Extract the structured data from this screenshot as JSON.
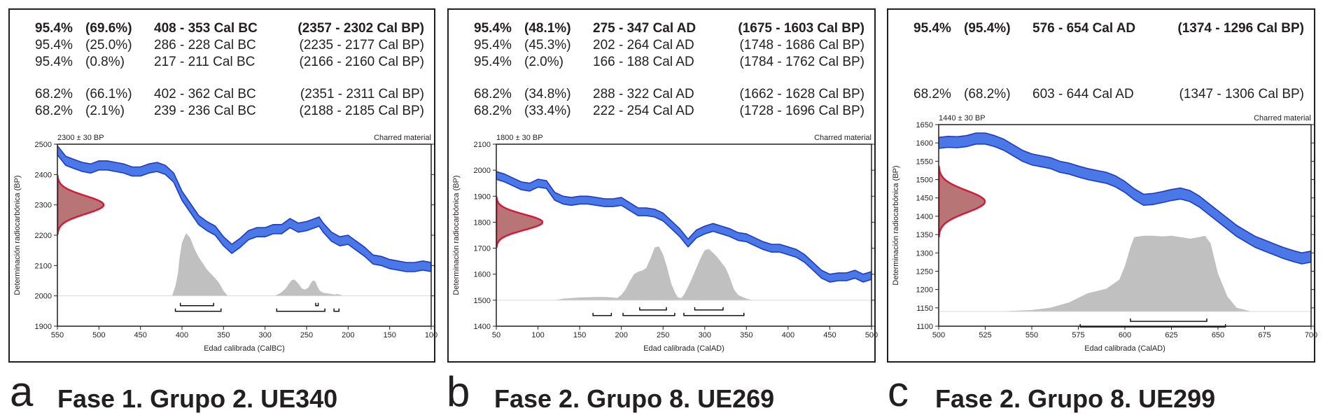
{
  "colors": {
    "calibration_curve": "#4a78e6",
    "calibration_curve_edge": "#1d3ac8",
    "radiocarbon_fill": "#b87575",
    "radiocarbon_edge": "#d01c3a",
    "calibrated_distribution": "#c0c0c0",
    "axis": "#231f20"
  },
  "panels": [
    {
      "letter": "a",
      "title": "Fase 1. Grupo 2. UE340",
      "stats_95": [
        {
          "prob": "95.4%",
          "rel": "(69.6%)",
          "cal": "408 - 353 Cal BC",
          "bp": "(2357 - 2302 Cal BP)",
          "bold": true
        },
        {
          "prob": "95.4%",
          "rel": "(25.0%)",
          "cal": "286 - 228 Cal BC",
          "bp": "(2235 - 2177 Cal BP)",
          "bold": false
        },
        {
          "prob": "95.4%",
          "rel": "(0.8%)",
          "cal": "217 - 211 Cal BC",
          "bp": "(2166 - 2160 Cal BP)",
          "bold": false
        }
      ],
      "stats_68": [
        {
          "prob": "68.2%",
          "rel": "(66.1%)",
          "cal": "402 - 362 Cal BC",
          "bp": "(2351 - 2311 Cal BP)",
          "bold": false
        },
        {
          "prob": "68.2%",
          "rel": "(2.1%)",
          "cal": "239 - 236 Cal BC",
          "bp": "(2188 - 2185 Cal BP)",
          "bold": false
        }
      ],
      "date_label": "2300 ± 30 BP",
      "material": "Charred material",
      "chart_data": {
        "type": "area",
        "xlabel": "Edad calibrada (CalBC)",
        "ylabel": "Determinación radiocarbónica (BP)",
        "xlim": [
          550,
          100
        ],
        "ylim": [
          1900,
          2500
        ],
        "xticks": [
          550,
          500,
          450,
          400,
          350,
          300,
          250,
          200,
          150,
          100
        ],
        "yticks": [
          1900,
          2000,
          2100,
          2200,
          2300,
          2400,
          2500
        ],
        "calibration_curve": {
          "x": [
            550,
            540,
            530,
            520,
            510,
            500,
            490,
            480,
            470,
            460,
            450,
            440,
            430,
            420,
            410,
            400,
            390,
            380,
            370,
            360,
            350,
            340,
            330,
            320,
            310,
            300,
            290,
            280,
            270,
            260,
            250,
            240,
            235,
            230,
            220,
            210,
            200,
            190,
            180,
            170,
            160,
            150,
            140,
            130,
            120,
            110,
            100
          ],
          "y": [
            2480,
            2445,
            2435,
            2425,
            2420,
            2430,
            2430,
            2425,
            2420,
            2410,
            2410,
            2420,
            2425,
            2415,
            2390,
            2330,
            2290,
            2250,
            2230,
            2215,
            2180,
            2155,
            2175,
            2200,
            2210,
            2210,
            2220,
            2220,
            2240,
            2225,
            2230,
            2240,
            2245,
            2225,
            2195,
            2180,
            2185,
            2165,
            2145,
            2120,
            2115,
            2105,
            2100,
            2095,
            2095,
            2100,
            2095
          ],
          "width": 30
        },
        "radiocarbon": {
          "mean": 2300,
          "sigma": 30
        },
        "calibrated_distribution": {
          "x": [
            420,
            412,
            408,
            405,
            403,
            400,
            395,
            390,
            385,
            380,
            375,
            370,
            365,
            360,
            355,
            350,
            345,
            290,
            285,
            280,
            275,
            272,
            268,
            265,
            260,
            256,
            252,
            248,
            245,
            242,
            239,
            237,
            234,
            230,
            225,
            220,
            216,
            213,
            210,
            205
          ],
          "h": [
            0,
            0,
            0.15,
            0.35,
            0.6,
            0.85,
            1.0,
            0.92,
            0.75,
            0.62,
            0.52,
            0.42,
            0.35,
            0.28,
            0.2,
            0.08,
            0,
            0,
            0.02,
            0.06,
            0.12,
            0.18,
            0.25,
            0.26,
            0.2,
            0.12,
            0.1,
            0.13,
            0.2,
            0.25,
            0.22,
            0.15,
            0.08,
            0.05,
            0.04,
            0.03,
            0.02,
            0.03,
            0.02,
            0
          ]
        },
        "ranges_95": [
          [
            408,
            353
          ],
          [
            286,
            228
          ],
          [
            217,
            211
          ]
        ],
        "ranges_68": [
          [
            402,
            362
          ],
          [
            239,
            236
          ]
        ]
      }
    },
    {
      "letter": "b",
      "title": "Fase 2. Grupo 8. UE269",
      "stats_95": [
        {
          "prob": "95.4%",
          "rel": "(48.1%)",
          "cal": "275 - 347 Cal AD",
          "bp": "(1675 - 1603 Cal BP)",
          "bold": true
        },
        {
          "prob": "95.4%",
          "rel": "(45.3%)",
          "cal": "202 - 264 Cal AD",
          "bp": "(1748 - 1686 Cal BP)",
          "bold": false
        },
        {
          "prob": "95.4%",
          "rel": "(2.0%)",
          "cal": "166 - 188 Cal AD",
          "bp": "(1784 - 1762 Cal BP)",
          "bold": false
        }
      ],
      "stats_68": [
        {
          "prob": "68.2%",
          "rel": "(34.8%)",
          "cal": "288 - 322 Cal AD",
          "bp": "(1662 - 1628 Cal BP)",
          "bold": false
        },
        {
          "prob": "68.2%",
          "rel": "(33.4%)",
          "cal": "222 - 254 Cal AD",
          "bp": "(1728 - 1696 Cal BP)",
          "bold": false
        }
      ],
      "date_label": "1800 ± 30 BP",
      "material": "Charred material",
      "chart_data": {
        "type": "area",
        "xlabel": "Edad calibrada (CalAD)",
        "ylabel": "Determinación radiocarbónica (BP)",
        "xlim": [
          50,
          500
        ],
        "ylim": [
          1400,
          2100
        ],
        "xticks": [
          50,
          100,
          150,
          200,
          250,
          300,
          350,
          400,
          450,
          500
        ],
        "yticks": [
          1400,
          1500,
          1600,
          1700,
          1800,
          1900,
          2000,
          2100
        ],
        "calibration_curve": {
          "x": [
            50,
            60,
            70,
            80,
            90,
            100,
            110,
            120,
            130,
            140,
            150,
            160,
            170,
            180,
            190,
            200,
            210,
            220,
            230,
            240,
            250,
            260,
            270,
            280,
            290,
            300,
            310,
            320,
            330,
            340,
            350,
            360,
            370,
            380,
            390,
            400,
            410,
            420,
            430,
            440,
            450,
            460,
            470,
            480,
            490,
            500
          ],
          "y": [
            1980,
            1970,
            1955,
            1940,
            1935,
            1950,
            1945,
            1900,
            1885,
            1880,
            1885,
            1885,
            1880,
            1875,
            1875,
            1880,
            1860,
            1840,
            1840,
            1835,
            1820,
            1790,
            1760,
            1720,
            1755,
            1770,
            1780,
            1770,
            1760,
            1745,
            1740,
            1725,
            1710,
            1700,
            1700,
            1690,
            1680,
            1660,
            1630,
            1600,
            1585,
            1590,
            1590,
            1600,
            1585,
            1595
          ],
          "width": 30
        },
        "radiocarbon": {
          "mean": 1800,
          "sigma": 30
        },
        "calibrated_distribution": {
          "x": [
            120,
            130,
            150,
            170,
            180,
            190,
            195,
            200,
            205,
            210,
            215,
            220,
            225,
            230,
            235,
            240,
            245,
            250,
            255,
            260,
            265,
            268,
            272,
            275,
            280,
            285,
            290,
            295,
            300,
            305,
            310,
            315,
            320,
            325,
            330,
            335,
            340,
            345,
            350,
            358
          ],
          "h": [
            0,
            0.03,
            0.05,
            0.06,
            0.06,
            0.05,
            0.04,
            0.1,
            0.2,
            0.35,
            0.48,
            0.53,
            0.55,
            0.6,
            0.78,
            0.98,
            1.0,
            0.85,
            0.6,
            0.3,
            0.12,
            0.05,
            0.04,
            0.1,
            0.25,
            0.42,
            0.6,
            0.78,
            0.93,
            0.95,
            0.88,
            0.8,
            0.7,
            0.6,
            0.42,
            0.2,
            0.1,
            0.06,
            0.03,
            0
          ]
        },
        "ranges_95": [
          [
            166,
            188
          ],
          [
            202,
            264
          ],
          [
            275,
            347
          ]
        ],
        "ranges_68": [
          [
            222,
            254
          ],
          [
            288,
            322
          ]
        ]
      }
    },
    {
      "letter": "c",
      "title": "Fase 2. Grupo 8. UE299",
      "stats_95": [
        {
          "prob": "95.4%",
          "rel": "(95.4%)",
          "cal": "576 - 654 Cal AD",
          "bp": "(1374 - 1296 Cal BP)",
          "bold": true
        }
      ],
      "stats_68": [
        {
          "prob": "68.2%",
          "rel": "(68.2%)",
          "cal": "603 - 644 Cal AD",
          "bp": "(1347 - 1306 Cal BP)",
          "bold": false
        }
      ],
      "date_label": "1440 ± 30 BP",
      "material": "Charred material",
      "chart_data": {
        "type": "area",
        "xlabel": "Edad calibrada (CalAD)",
        "ylabel": "Determinación radiocarbónica (BP)",
        "xlim": [
          500,
          700
        ],
        "ylim": [
          1100,
          1650
        ],
        "xticks": [
          500,
          525,
          550,
          575,
          600,
          625,
          650,
          675,
          700
        ],
        "yticks": [
          1100,
          1150,
          1200,
          1250,
          1300,
          1350,
          1400,
          1450,
          1500,
          1550,
          1600,
          1650
        ],
        "calibration_curve": {
          "x": [
            500,
            505,
            510,
            515,
            520,
            525,
            530,
            535,
            540,
            545,
            550,
            555,
            560,
            565,
            570,
            575,
            580,
            585,
            590,
            595,
            600,
            605,
            610,
            615,
            620,
            625,
            630,
            635,
            640,
            645,
            650,
            655,
            660,
            665,
            670,
            675,
            680,
            685,
            690,
            695,
            700
          ],
          "y": [
            1600,
            1603,
            1602,
            1605,
            1612,
            1612,
            1605,
            1595,
            1580,
            1565,
            1555,
            1550,
            1545,
            1535,
            1530,
            1522,
            1515,
            1510,
            1505,
            1495,
            1480,
            1460,
            1445,
            1447,
            1452,
            1458,
            1462,
            1455,
            1440,
            1420,
            1400,
            1380,
            1360,
            1345,
            1330,
            1320,
            1310,
            1300,
            1292,
            1285,
            1290
          ],
          "width": 30
        },
        "radiocarbon": {
          "mean": 1440,
          "sigma": 30
        },
        "calibrated_distribution": {
          "x": [
            530,
            550,
            560,
            570,
            575,
            580,
            590,
            597,
            600,
            603,
            605,
            610,
            615,
            620,
            625,
            630,
            635,
            640,
            643,
            646,
            650,
            655,
            660,
            668
          ],
          "h": [
            0,
            0.02,
            0.05,
            0.12,
            0.18,
            0.24,
            0.3,
            0.42,
            0.6,
            0.85,
            0.98,
            1.0,
            1.0,
            0.99,
            1.0,
            0.98,
            0.96,
            0.98,
            1.0,
            0.9,
            0.5,
            0.2,
            0.05,
            0
          ]
        },
        "ranges_95": [
          [
            576,
            654
          ]
        ],
        "ranges_68": [
          [
            603,
            644
          ]
        ]
      }
    }
  ]
}
